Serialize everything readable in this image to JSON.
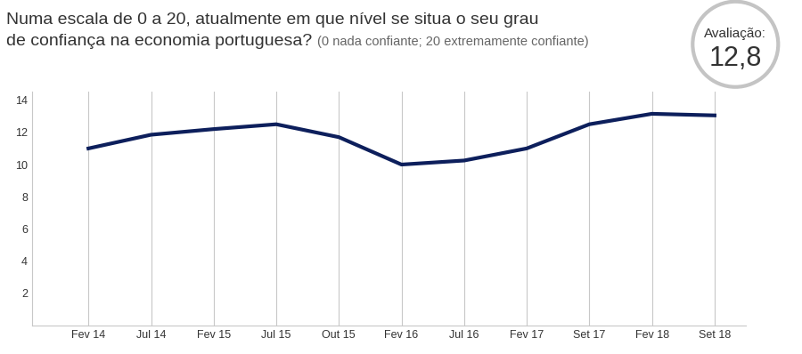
{
  "chart_data": {
    "type": "line",
    "title": "Numa escala de 0 a 20, atualmente em que nível se situa o seu grau de confiança na economia portuguesa?",
    "subtitle": "(0 nada confiante; 20 extremamente confiante)",
    "annotations": [
      "Avaliação:",
      "12,8"
    ],
    "categories": [
      "Fev 14",
      "Jul 14",
      "Fev 15",
      "Jul 15",
      "Out 15",
      "Fev 16",
      "Jul 16",
      "Fev 17",
      "Set 17",
      "Fev 18",
      "Set 18"
    ],
    "values": [
      11.0,
      11.85,
      12.2,
      12.5,
      11.7,
      10.0,
      10.25,
      11.0,
      12.5,
      13.15,
      13.05
    ],
    "color": "#0d1f5c",
    "ylim": [
      0,
      14.5
    ],
    "yticks": [
      2,
      4,
      6,
      8,
      10,
      12,
      14
    ],
    "grid": true
  }
}
